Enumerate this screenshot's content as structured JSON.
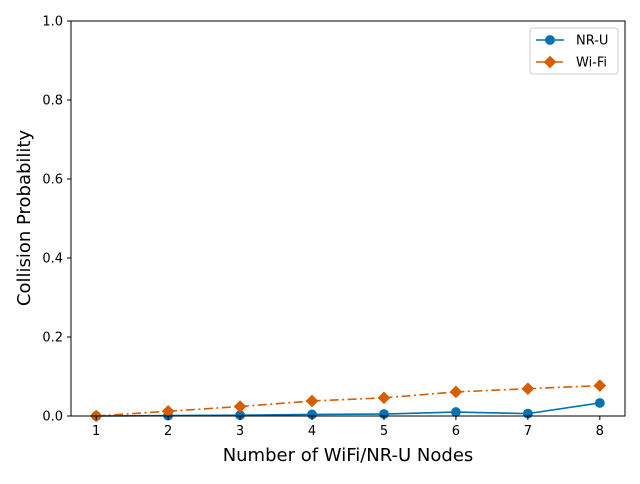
{
  "chart_data": {
    "type": "line",
    "title": "",
    "xlabel": "Number of WiFi/NR-U Nodes",
    "ylabel": "Collision Probability",
    "x": [
      1,
      2,
      3,
      4,
      5,
      6,
      7,
      8
    ],
    "xlim": [
      0.65,
      8.35
    ],
    "ylim": [
      0,
      1.0
    ],
    "xticks": [
      "1",
      "2",
      "3",
      "4",
      "5",
      "6",
      "7",
      "8"
    ],
    "yticks": [
      "0.0",
      "0.2",
      "0.4",
      "0.6",
      "0.8",
      "1.0"
    ],
    "grid": false,
    "legend_position": "upper right",
    "series": [
      {
        "name": "NR-U",
        "values": [
          0.0,
          0.001,
          0.002,
          0.004,
          0.005,
          0.01,
          0.006,
          0.033
        ],
        "color": "#0072b2",
        "marker": "circle",
        "line_style": "solid"
      },
      {
        "name": "Wi-Fi",
        "values": [
          0.0,
          0.012,
          0.024,
          0.038,
          0.046,
          0.061,
          0.069,
          0.077
        ],
        "color": "#d55e00",
        "marker": "diamond",
        "line_style": "dash-dot"
      }
    ]
  }
}
